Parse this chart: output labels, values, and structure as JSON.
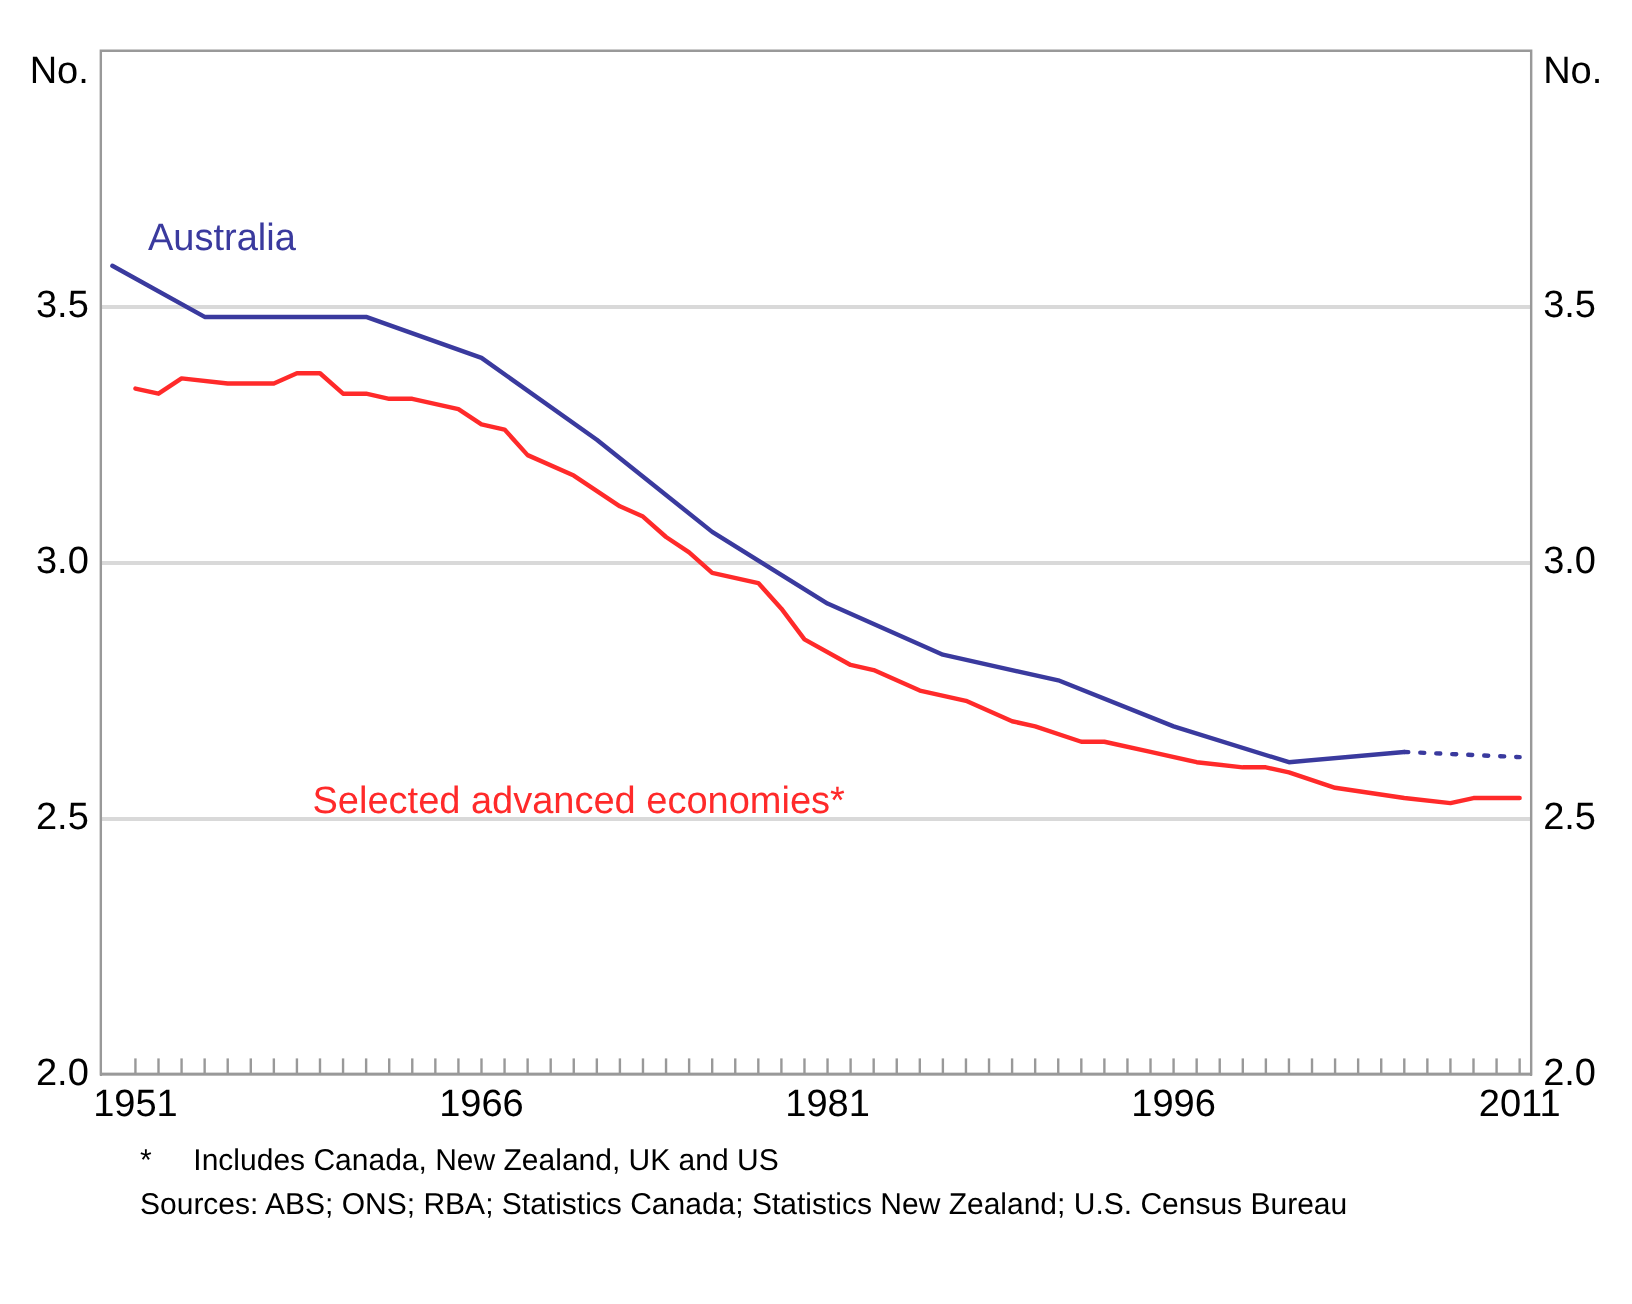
{
  "chart_data": {
    "type": "line",
    "ylabel": "No.",
    "y2label": "No.",
    "xlim": [
      1949.5,
      2011.5
    ],
    "xticks": [
      1951,
      {
        "value": 1952,
        "label": null
      },
      {
        "value": 1953,
        "label": null
      },
      {
        "value": 1954,
        "label": null
      },
      {
        "value": 1955,
        "label": null
      },
      {
        "value": 1956,
        "label": null
      },
      {
        "value": 1957,
        "label": null
      },
      {
        "value": 1958,
        "label": null
      },
      {
        "value": 1959,
        "label": null
      },
      {
        "value": 1960,
        "label": null
      },
      {
        "value": 1961,
        "label": null
      },
      {
        "value": 1962,
        "label": null
      },
      {
        "value": 1963,
        "label": null
      },
      {
        "value": 1964,
        "label": null
      },
      {
        "value": 1965,
        "label": null
      },
      1966,
      {
        "value": 1967,
        "label": null
      },
      {
        "value": 1968,
        "label": null
      },
      {
        "value": 1969,
        "label": null
      },
      {
        "value": 1970,
        "label": null
      },
      {
        "value": 1971,
        "label": null
      },
      {
        "value": 1972,
        "label": null
      },
      {
        "value": 1973,
        "label": null
      },
      {
        "value": 1974,
        "label": null
      },
      {
        "value": 1975,
        "label": null
      },
      {
        "value": 1976,
        "label": null
      },
      {
        "value": 1977,
        "label": null
      },
      {
        "value": 1978,
        "label": null
      },
      {
        "value": 1979,
        "label": null
      },
      {
        "value": 1980,
        "label": null
      },
      1981,
      {
        "value": 1982,
        "label": null
      },
      {
        "value": 1983,
        "label": null
      },
      {
        "value": 1984,
        "label": null
      },
      {
        "value": 1985,
        "label": null
      },
      {
        "value": 1986,
        "label": null
      },
      {
        "value": 1987,
        "label": null
      },
      {
        "value": 1988,
        "label": null
      },
      {
        "value": 1989,
        "label": null
      },
      {
        "value": 1990,
        "label": null
      },
      {
        "value": 1991,
        "label": null
      },
      {
        "value": 1992,
        "label": null
      },
      {
        "value": 1993,
        "label": null
      },
      {
        "value": 1994,
        "label": null
      },
      {
        "value": 1995,
        "label": null
      },
      1996,
      {
        "value": 1997,
        "label": null
      },
      {
        "value": 1998,
        "label": null
      },
      {
        "value": 1999,
        "label": null
      },
      {
        "value": 2000,
        "label": null
      },
      {
        "value": 2001,
        "label": null
      },
      {
        "value": 2002,
        "label": null
      },
      {
        "value": 2003,
        "label": null
      },
      {
        "value": 2004,
        "label": null
      },
      {
        "value": 2005,
        "label": null
      },
      {
        "value": 2006,
        "label": null
      },
      {
        "value": 2007,
        "label": null
      },
      {
        "value": 2008,
        "label": null
      },
      {
        "value": 2009,
        "label": null
      },
      {
        "value": 2010,
        "label": null
      },
      2011
    ],
    "ylim": [
      2.0,
      4.0
    ],
    "yticks": [
      {
        "value": 2.0,
        "label": "2.0"
      },
      2.5,
      {
        "value": 3.0,
        "label": "3.0"
      },
      3.5
    ],
    "y2lim": [
      2.0,
      4.0
    ],
    "y2ticks": [
      {
        "value": 2.0,
        "label": "2.0"
      },
      2.5,
      {
        "value": 3.0,
        "label": "3.0"
      },
      3.5
    ],
    "grid": "y",
    "legend": false,
    "marker": "none",
    "series": [
      {
        "name": "Australia",
        "color": "#3a3a9e",
        "line_style": "solid",
        "x": [
          1950,
          1954,
          1961,
          1966,
          1971,
          1976,
          1981,
          1986,
          1991,
          1996,
          2001,
          2006
        ],
        "values": [
          3.58,
          3.48,
          3.48,
          3.4,
          3.24,
          3.06,
          2.92,
          2.82,
          2.77,
          2.68,
          2.61,
          2.63
        ]
      },
      {
        "color": "#3a3a9e",
        "line_style": "dotted",
        "x": [
          2006,
          2011
        ],
        "values": [
          2.63,
          2.62
        ]
      },
      {
        "name": "Selected advanced economies*",
        "color": "#ff2a2a",
        "line_style": "solid",
        "x": [
          1951,
          1952,
          1953,
          1955,
          1957,
          1958,
          1959,
          1960,
          1961,
          1962,
          1963,
          1965,
          1966,
          1967,
          1968,
          1970,
          1972,
          1973,
          1974,
          1975,
          1976,
          1978,
          1979,
          1980,
          1982,
          1983,
          1985,
          1987,
          1989,
          1990,
          1992,
          1993,
          1995,
          1997,
          1999,
          2000,
          2001,
          2003,
          2006,
          2008,
          2009,
          2011
        ],
        "values": [
          3.34,
          3.33,
          3.36,
          3.35,
          3.35,
          3.37,
          3.37,
          3.33,
          3.33,
          3.32,
          3.32,
          3.3,
          3.27,
          3.26,
          3.21,
          3.17,
          3.11,
          3.09,
          3.05,
          3.02,
          2.98,
          2.96,
          2.91,
          2.85,
          2.8,
          2.79,
          2.75,
          2.73,
          2.69,
          2.68,
          2.65,
          2.65,
          2.63,
          2.61,
          2.6,
          2.6,
          2.59,
          2.56,
          2.54,
          2.53,
          2.54,
          2.54
        ]
      }
    ],
    "annotations": [
      "*     Includes Canada, New Zealand, UK and US",
      "Sources: ABS; ONS; RBA; Statistics Canada; Statistics New Zealand; U.S. Census Bureau"
    ]
  }
}
